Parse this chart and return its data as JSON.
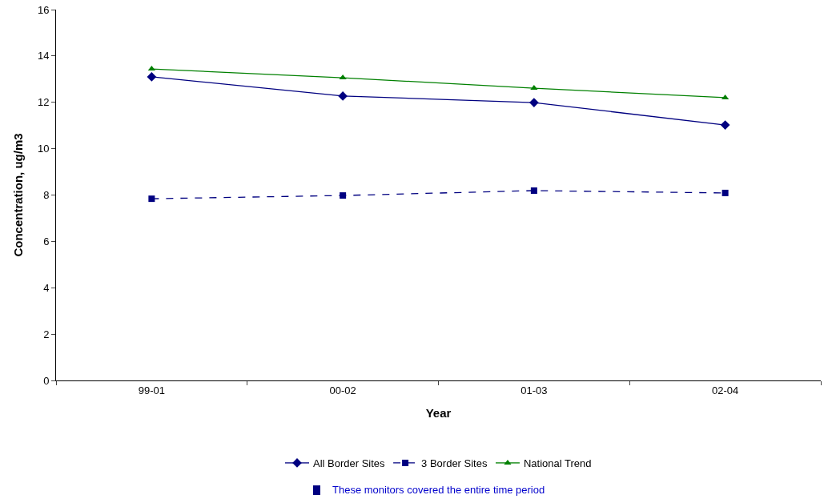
{
  "chart_data": {
    "type": "line",
    "xlabel": "Year",
    "ylabel": "Concentration, ug/m3",
    "categories": [
      "99-01",
      "00-02",
      "01-03",
      "02-04"
    ],
    "series": [
      {
        "name": "All Border Sites",
        "color": "#000080",
        "marker": "diamond",
        "line_style": "solid",
        "values": [
          13.1,
          12.27,
          11.99,
          11.02
        ]
      },
      {
        "name": "3 Border Sites",
        "color": "#000080",
        "marker": "square",
        "line_style": "dashed",
        "values": [
          7.84,
          7.98,
          8.19,
          8.09
        ]
      },
      {
        "name": "National Trend",
        "color": "#008000",
        "marker": "triangle",
        "line_style": "solid",
        "values": [
          13.44,
          13.06,
          12.61,
          12.2
        ]
      }
    ],
    "ylim": [
      0,
      16
    ],
    "yticks": [
      0,
      2,
      4,
      6,
      8,
      10,
      12,
      14,
      16
    ],
    "grid": false,
    "legend": "bottom",
    "annotations": [
      "These monitors covered the entire time period"
    ]
  }
}
